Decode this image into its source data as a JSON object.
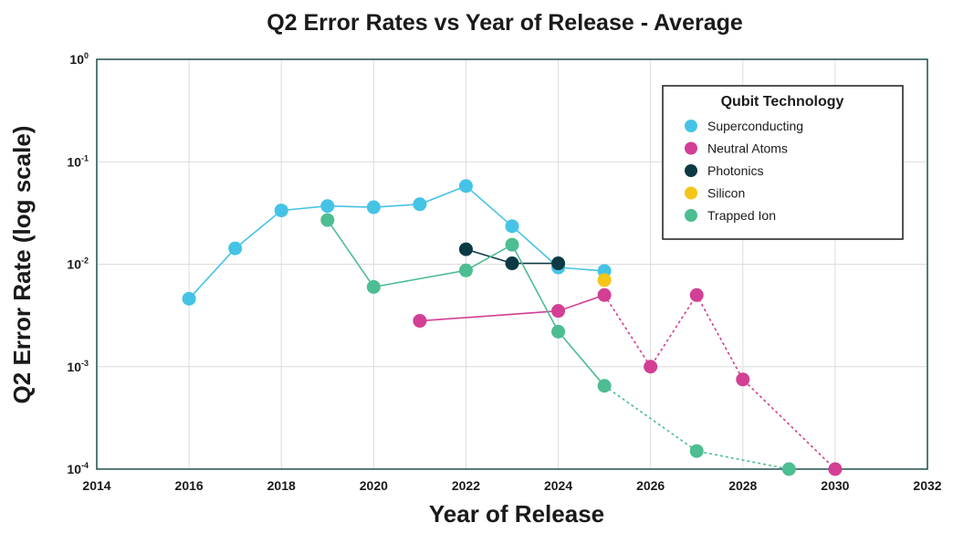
{
  "chart_data": {
    "type": "scatter",
    "title": "Q2 Error Rates vs Year of Release - Average",
    "xlabel": "Year of Release",
    "ylabel": "Q2 Error Rate (log scale)",
    "xlim": [
      2014,
      2032
    ],
    "ylim": [
      0.0001,
      1
    ],
    "yscale": "log",
    "x_ticks": [
      2014,
      2016,
      2018,
      2020,
      2022,
      2024,
      2026,
      2028,
      2030,
      2032
    ],
    "y_ticks": [
      {
        "base": "10",
        "exp": "0",
        "value": 1
      },
      {
        "base": "10",
        "exp": "-1",
        "value": 0.1
      },
      {
        "base": "10",
        "exp": "-2",
        "value": 0.01
      },
      {
        "base": "10",
        "exp": "-3",
        "value": 0.001
      },
      {
        "base": "10",
        "exp": "-4",
        "value": 0.0001
      }
    ],
    "grid": true,
    "legend": {
      "title": "Qubit Technology",
      "position": "top-right"
    },
    "series": [
      {
        "name": "Superconducting",
        "color": "#45c3e6",
        "points": [
          [
            2016,
            0.0046
          ],
          [
            2017,
            0.0143
          ],
          [
            2018,
            0.0335
          ],
          [
            2019,
            0.037
          ],
          [
            2020,
            0.036
          ],
          [
            2021,
            0.0385
          ],
          [
            2022,
            0.058
          ],
          [
            2023,
            0.0235
          ],
          [
            2024,
            0.0093
          ],
          [
            2025,
            0.0086
          ]
        ],
        "projected": []
      },
      {
        "name": "Neutral Atoms",
        "color": "#d23f94",
        "points": [
          [
            2021,
            0.0028
          ],
          [
            2024,
            0.0035
          ],
          [
            2025,
            0.005
          ]
        ],
        "projected": [
          [
            2025,
            0.005
          ],
          [
            2026,
            0.001
          ],
          [
            2027,
            0.005
          ],
          [
            2028,
            0.00075
          ],
          [
            2030,
            0.0001
          ]
        ]
      },
      {
        "name": "Photonics",
        "color": "#0b3a44",
        "points": [
          [
            2022,
            0.014
          ],
          [
            2023,
            0.0102
          ],
          [
            2024,
            0.0102
          ]
        ],
        "projected": []
      },
      {
        "name": "Silicon",
        "color": "#f5c518",
        "points": [
          [
            2025,
            0.007
          ]
        ],
        "projected": []
      },
      {
        "name": "Trapped Ion",
        "color": "#4dbd92",
        "points": [
          [
            2019,
            0.027
          ],
          [
            2020,
            0.006
          ],
          [
            2022,
            0.0087
          ],
          [
            2023,
            0.0155
          ],
          [
            2024,
            0.0022
          ],
          [
            2025,
            0.00065
          ]
        ],
        "projected": [
          [
            2025,
            0.00065
          ],
          [
            2027,
            0.00015
          ],
          [
            2029,
            0.0001
          ]
        ]
      }
    ]
  }
}
